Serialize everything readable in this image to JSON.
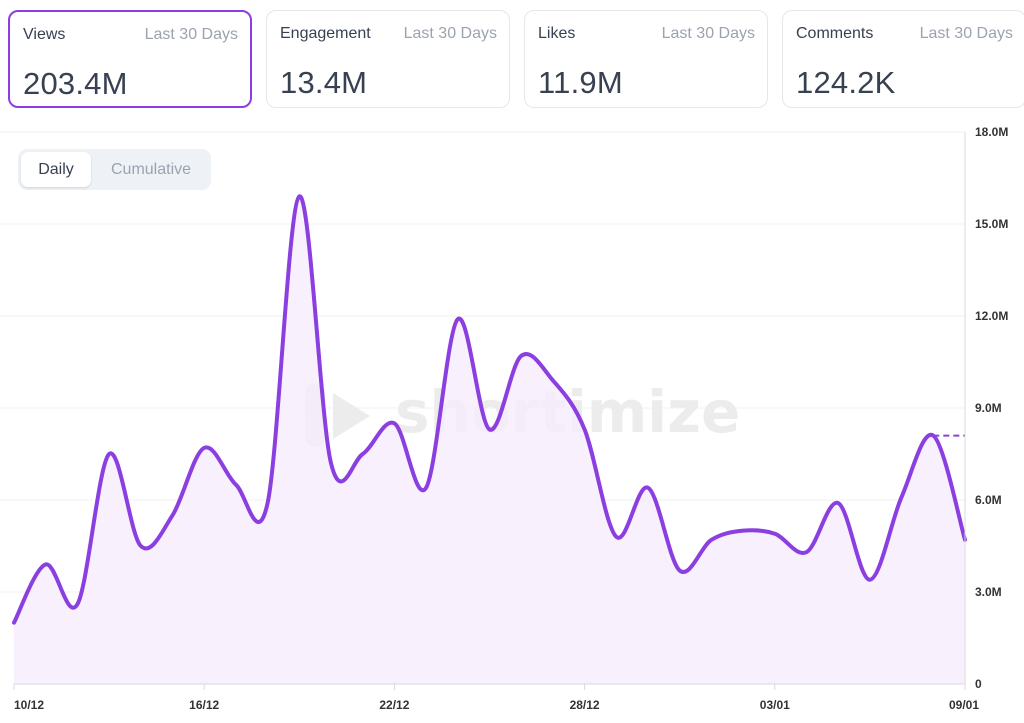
{
  "cards": [
    {
      "label": "Views",
      "period": "Last 30 Days",
      "value": "203.4M",
      "active": true
    },
    {
      "label": "Engagement",
      "period": "Last 30 Days",
      "value": "13.4M",
      "active": false
    },
    {
      "label": "Likes",
      "period": "Last 30 Days",
      "value": "11.9M",
      "active": false
    },
    {
      "label": "Comments",
      "period": "Last 30 Days",
      "value": "124.2K",
      "active": false
    }
  ],
  "toggle": {
    "daily": "Daily",
    "cumulative": "Cumulative",
    "selected": "Daily"
  },
  "watermark": "shortimize",
  "colors": {
    "line": "#8b3fe0",
    "fill": "#f6eefd",
    "grid": "#f0f0f0",
    "active_border": "#8b3fe0"
  },
  "chart_data": {
    "type": "area",
    "x_tick_labels": [
      "10/12",
      "16/12",
      "22/12",
      "28/12",
      "03/01",
      "09/01"
    ],
    "x_tick_positions": [
      0,
      6,
      12,
      18,
      24,
      30
    ],
    "y_tick_labels": [
      "0",
      "3.0M",
      "6.0M",
      "9.0M",
      "12.0M",
      "15.0M",
      "18.0M"
    ],
    "ylim": [
      0,
      18
    ],
    "y_unit": "M",
    "grid": true,
    "series": [
      {
        "x": [
          0,
          1,
          2,
          3,
          4,
          5,
          6,
          7,
          8,
          9,
          10,
          11,
          12,
          13,
          14,
          15,
          16,
          17,
          18,
          19,
          20,
          21,
          22,
          23,
          24,
          25,
          26,
          27,
          28,
          29,
          30
        ],
        "values": [
          2.0,
          3.9,
          2.6,
          7.5,
          4.5,
          5.5,
          7.7,
          6.5,
          5.9,
          15.9,
          7.2,
          7.5,
          8.5,
          6.4,
          11.9,
          8.3,
          10.7,
          9.9,
          8.3,
          4.8,
          6.4,
          3.7,
          4.7,
          5.0,
          4.9,
          4.3,
          5.9,
          3.4,
          6.1,
          8.1,
          4.7
        ]
      }
    ],
    "reference_value": 8.1
  }
}
